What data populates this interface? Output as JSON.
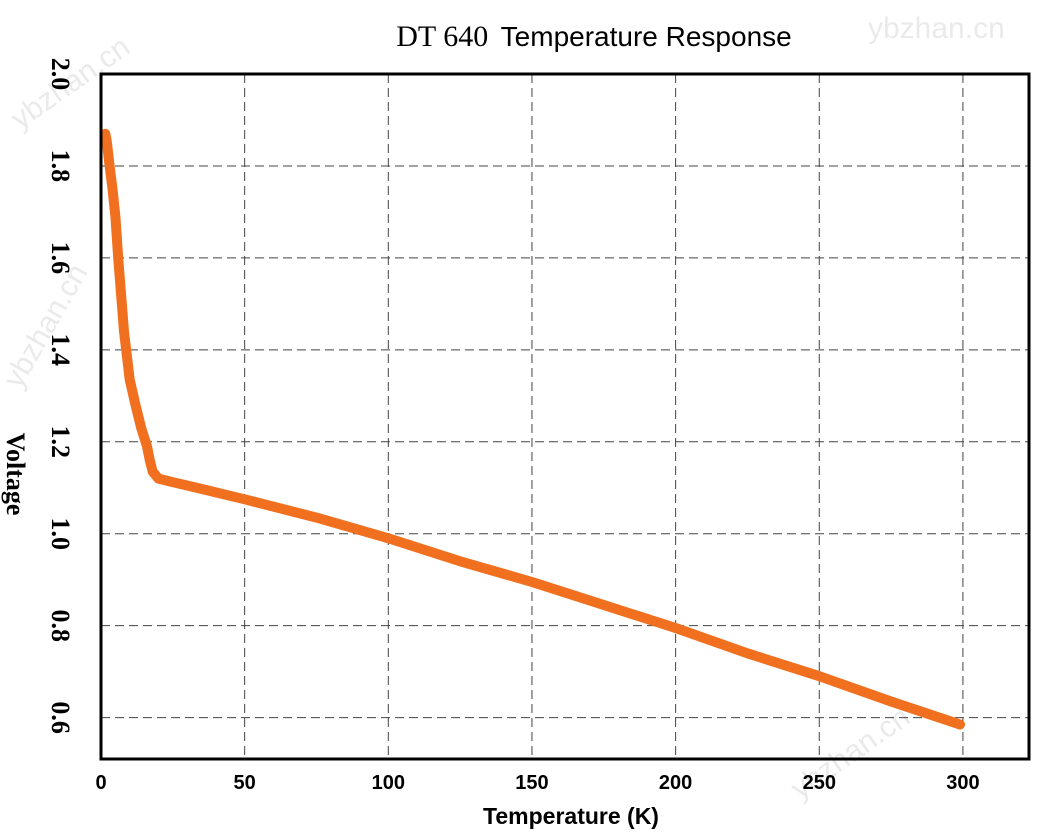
{
  "chart_data": {
    "type": "line",
    "title_main": "DT 640",
    "title_rest": "Temperature Response",
    "xlabel": "Temperature (K)",
    "ylabel": "Voltage",
    "xlim": [
      0,
      323
    ],
    "ylim": [
      0.51,
      2.0
    ],
    "x_ticks": [
      "0",
      "50",
      "100",
      "150",
      "200",
      "250",
      "300"
    ],
    "y_ticks": [
      "0.6",
      "0.8",
      "1.0",
      "1.2",
      "1.4",
      "1.6",
      "1.8",
      "2.0"
    ],
    "grid": true,
    "legend": "none",
    "series": [
      {
        "color": "#f07020",
        "x": [
          1.5,
          2,
          3,
          4,
          5,
          6,
          8,
          10,
          12,
          14,
          16,
          17,
          18,
          20,
          25,
          30,
          40,
          50,
          75,
          100,
          125,
          150,
          175,
          200,
          225,
          250,
          275,
          299
        ],
        "y": [
          1.87,
          1.855,
          1.8,
          1.75,
          1.69,
          1.6,
          1.44,
          1.335,
          1.28,
          1.23,
          1.19,
          1.16,
          1.135,
          1.12,
          1.112,
          1.105,
          1.09,
          1.075,
          1.035,
          0.99,
          0.94,
          0.895,
          0.845,
          0.795,
          0.74,
          0.69,
          0.635,
          0.585
        ]
      }
    ]
  },
  "watermark": "ybzhan.cn"
}
